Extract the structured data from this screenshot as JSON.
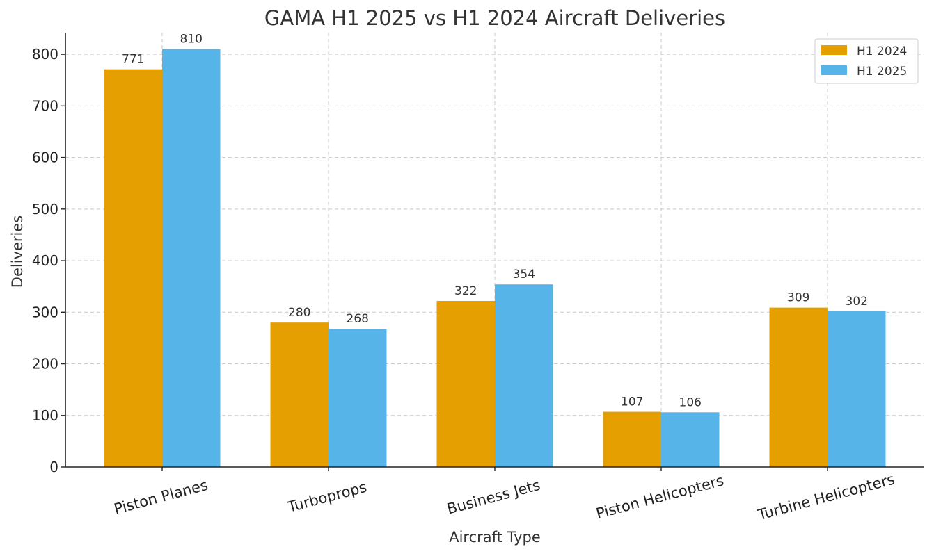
{
  "chart_data": {
    "type": "bar",
    "title": "GAMA H1 2025 vs H1 2024 Aircraft Deliveries",
    "xlabel": "Aircraft Type",
    "ylabel": "Deliveries",
    "categories": [
      "Piston Planes",
      "Turboprops",
      "Business Jets",
      "Piston Helicopters",
      "Turbine Helicopters"
    ],
    "series": [
      {
        "name": "H1 2024",
        "values": [
          771,
          280,
          322,
          107,
          309
        ],
        "color": "#E69F00"
      },
      {
        "name": "H1 2025",
        "values": [
          810,
          268,
          354,
          106,
          302
        ],
        "color": "#56B4E9"
      }
    ],
    "ylim": [
      0,
      850
    ],
    "yticks": [
      0,
      100,
      200,
      300,
      400,
      500,
      600,
      700,
      800
    ],
    "grid": true,
    "legend_position": "top-right",
    "data_labels": true
  }
}
